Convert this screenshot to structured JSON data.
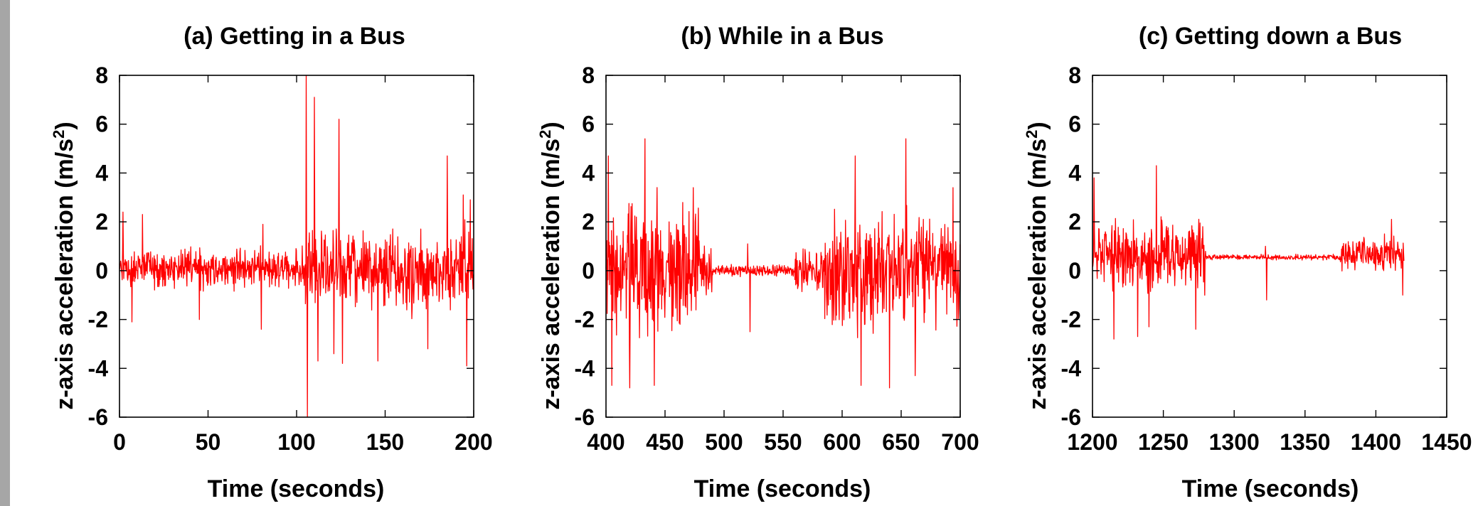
{
  "colors": {
    "series": "#ff0000",
    "axis": "#000000",
    "strip": "#a6a6a6"
  },
  "chart_data": [
    {
      "type": "line",
      "title": "(a) Getting in a Bus",
      "xlabel": "Time (seconds)",
      "ylabel": "z-axis acceleration (m/s",
      "ylabel_sup": "2",
      "ylabel_close": ")",
      "xlim": [
        0,
        200
      ],
      "ylim": [
        -6,
        8
      ],
      "xticks": [
        "0",
        "50",
        "100",
        "150",
        "200"
      ],
      "yticks": [
        "-6",
        "-4",
        "-2",
        "0",
        "2",
        "4",
        "6",
        "8"
      ],
      "grid": false,
      "series": [
        {
          "segments": [
            {
              "x0": 0,
              "x1": 105,
              "center": 0.1,
              "amp": 1.1
            },
            {
              "x0": 105,
              "x1": 200,
              "center": 0.0,
              "amp": 2.2
            }
          ],
          "peaks": [
            {
              "x": 2,
              "y": 2.4
            },
            {
              "x": 13,
              "y": 2.3
            },
            {
              "x": 7,
              "y": -2.1
            },
            {
              "x": 45,
              "y": -2.0
            },
            {
              "x": 81,
              "y": 1.9
            },
            {
              "x": 80,
              "y": -2.4
            },
            {
              "x": 105.5,
              "y": 8.0
            },
            {
              "x": 106,
              "y": -6.0
            },
            {
              "x": 110,
              "y": 7.1
            },
            {
              "x": 112,
              "y": -3.7
            },
            {
              "x": 121,
              "y": -3.4
            },
            {
              "x": 124,
              "y": 6.2
            },
            {
              "x": 126,
              "y": -3.8
            },
            {
              "x": 146,
              "y": -3.7
            },
            {
              "x": 174,
              "y": -3.2
            },
            {
              "x": 185,
              "y": 4.7
            },
            {
              "x": 194,
              "y": 3.1
            },
            {
              "x": 196,
              "y": -3.9
            },
            {
              "x": 198,
              "y": 2.9
            }
          ]
        }
      ]
    },
    {
      "type": "line",
      "title": "(b) While in a Bus",
      "xlabel": "Time (seconds)",
      "ylabel": "z-axis acceleration (m/s",
      "ylabel_sup": "2",
      "ylabel_close": ")",
      "xlim": [
        400,
        700
      ],
      "ylim": [
        -6,
        8
      ],
      "xticks": [
        "400",
        "450",
        "500",
        "550",
        "600",
        "650",
        "700"
      ],
      "yticks": [
        "-6",
        "-4",
        "-2",
        "0",
        "2",
        "4",
        "6",
        "8"
      ],
      "grid": false,
      "series": [
        {
          "segments": [
            {
              "x0": 400,
              "x1": 480,
              "center": 0.0,
              "amp": 3.6
            },
            {
              "x0": 480,
              "x1": 490,
              "center": 0.0,
              "amp": 1.6
            },
            {
              "x0": 490,
              "x1": 560,
              "center": 0.0,
              "amp": 0.35
            },
            {
              "x0": 560,
              "x1": 585,
              "center": 0.0,
              "amp": 1.3
            },
            {
              "x0": 585,
              "x1": 700,
              "center": 0.0,
              "amp": 3.4
            }
          ],
          "peaks": [
            {
              "x": 402,
              "y": 4.7
            },
            {
              "x": 405,
              "y": -4.7
            },
            {
              "x": 420,
              "y": -4.8
            },
            {
              "x": 433,
              "y": 5.4
            },
            {
              "x": 441,
              "y": -4.7
            },
            {
              "x": 474,
              "y": 3.4
            },
            {
              "x": 522,
              "y": -2.5
            },
            {
              "x": 520,
              "y": 1.1
            },
            {
              "x": 611,
              "y": 4.7
            },
            {
              "x": 616,
              "y": -4.7
            },
            {
              "x": 640,
              "y": -4.8
            },
            {
              "x": 654,
              "y": 5.4
            },
            {
              "x": 662,
              "y": -4.3
            },
            {
              "x": 694,
              "y": 3.4
            }
          ]
        }
      ]
    },
    {
      "type": "line",
      "title": "(c) Getting down a Bus",
      "xlabel": "Time (seconds)",
      "ylabel": "z-axis acceleration (m/s",
      "ylabel_sup": "2",
      "ylabel_close": ")",
      "xlim": [
        1200,
        1450
      ],
      "ylim": [
        -6,
        8
      ],
      "xticks": [
        "1200",
        "1250",
        "1300",
        "1350",
        "1400",
        "1450"
      ],
      "yticks": [
        "-6",
        "-4",
        "-2",
        "0",
        "2",
        "4",
        "6",
        "8"
      ],
      "grid": false,
      "series": [
        {
          "segments": [
            {
              "x0": 1200,
              "x1": 1280,
              "center": 0.6,
              "amp": 1.9
            },
            {
              "x0": 1280,
              "x1": 1375,
              "center": 0.55,
              "amp": 0.15
            },
            {
              "x0": 1375,
              "x1": 1420,
              "center": 0.7,
              "amp": 0.9
            }
          ],
          "peaks": [
            {
              "x": 1201,
              "y": 3.8
            },
            {
              "x": 1245,
              "y": 4.3
            },
            {
              "x": 1215,
              "y": -2.8
            },
            {
              "x": 1232,
              "y": -2.7
            },
            {
              "x": 1240,
              "y": -2.3
            },
            {
              "x": 1273,
              "y": -2.4
            },
            {
              "x": 1323,
              "y": -1.2
            },
            {
              "x": 1322,
              "y": 1.0
            },
            {
              "x": 1411,
              "y": 2.1
            },
            {
              "x": 1419,
              "y": -1.0
            }
          ]
        }
      ]
    }
  ]
}
